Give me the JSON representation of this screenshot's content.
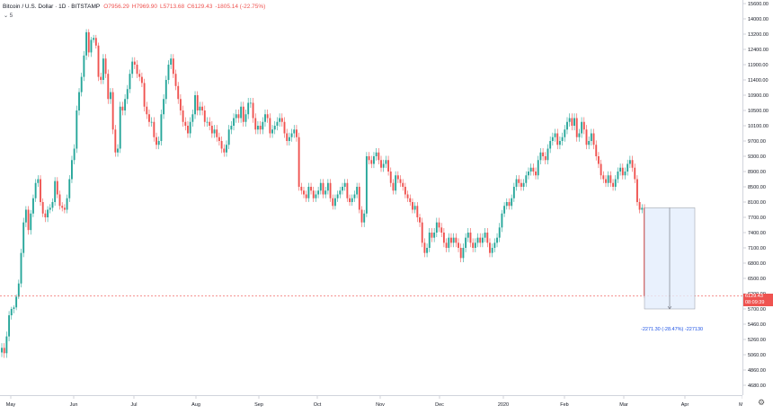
{
  "header": {
    "symbol": "Bitcoin / U.S. Dollar · 1D · BITSTAMP",
    "open": "O7956.29",
    "high": "H7969.90",
    "low": "L5713.68",
    "close": "C6129.43",
    "change": "-1805.14 (-22.75%)"
  },
  "collapse_label": "5",
  "last_price": {
    "value": "6129.43",
    "countdown": "08:09:39"
  },
  "measure": {
    "label": "-2271.30 (-28.47%) -227130"
  },
  "colors": {
    "up": "#26a69a",
    "down": "#ef5350",
    "measure": "#1e53e5",
    "measure_fill": "#e3edfc"
  },
  "chart_data": {
    "type": "candlestick",
    "y_ticks": [
      "15600.00",
      "14000.00",
      "13200.00",
      "12400.00",
      "11900.00",
      "11400.00",
      "10900.00",
      "10500.00",
      "10100.00",
      "9700.00",
      "9300.00",
      "8900.00",
      "8500.00",
      "8100.00",
      "7700.00",
      "7400.00",
      "7100.00",
      "6800.00",
      "6500.00",
      "6200.00",
      "5700.00",
      "5460.00",
      "5260.00",
      "5060.00",
      "4860.00",
      "4680.00"
    ],
    "x_ticks": [
      "May",
      "Jun",
      "Jul",
      "Aug",
      "Sep",
      "Oct",
      "Nov",
      "Dec",
      "2020",
      "Feb",
      "Mar",
      "Apr",
      "Ma"
    ],
    "ylim": [
      4500,
      15800
    ],
    "closes": [
      5150,
      5080,
      5300,
      5600,
      5700,
      5750,
      6100,
      6400,
      7000,
      7600,
      7900,
      7450,
      7800,
      8200,
      8600,
      8700,
      8100,
      7800,
      7700,
      7900,
      7950,
      8100,
      8650,
      8300,
      8000,
      7950,
      7900,
      8200,
      8700,
      9200,
      9500,
      10500,
      11000,
      11500,
      12200,
      13300,
      12300,
      12900,
      13000,
      12600,
      11500,
      11400,
      12100,
      11600,
      10800,
      11000,
      10000,
      9400,
      9500,
      10600,
      10500,
      10800,
      11100,
      11600,
      12000,
      11900,
      11600,
      11500,
      11300,
      10600,
      10400,
      10200,
      10200,
      9800,
      9600,
      9700,
      10400,
      10800,
      11400,
      11900,
      12100,
      11600,
      11200,
      10800,
      10500,
      10200,
      10100,
      9900,
      10200,
      10400,
      10900,
      10500,
      10600,
      10500,
      10200,
      10200,
      10100,
      9900,
      10000,
      9800,
      9700,
      9500,
      9400,
      9600,
      10000,
      10100,
      10300,
      10400,
      10300,
      10600,
      10200,
      10400,
      10700,
      10700,
      10300,
      10000,
      10100,
      10000,
      10200,
      10400,
      10300,
      9900,
      10000,
      10100,
      10200,
      10300,
      10200,
      9900,
      9700,
      9800,
      9900,
      10000,
      9800,
      8500,
      8400,
      8300,
      8200,
      8500,
      8400,
      8200,
      8300,
      8400,
      8600,
      8300,
      8400,
      8600,
      8200,
      8000,
      8200,
      8300,
      8400,
      8500,
      8600,
      8200,
      8100,
      8200,
      8300,
      8500,
      7900,
      7600,
      7800,
      9300,
      9200,
      9100,
      9300,
      9400,
      9200,
      9000,
      9100,
      9200,
      8900,
      8600,
      8400,
      8800,
      8700,
      8600,
      8500,
      8300,
      8200,
      8100,
      7900,
      8000,
      7700,
      7600,
      7200,
      7000,
      7100,
      7400,
      7300,
      7400,
      7600,
      7500,
      7400,
      7200,
      7100,
      7300,
      7200,
      7300,
      7200,
      7100,
      6900,
      7100,
      7300,
      7400,
      7200,
      7100,
      7200,
      7300,
      7200,
      7300,
      7400,
      7200,
      7000,
      7100,
      7200,
      7300,
      7500,
      7800,
      8000,
      8100,
      8000,
      8200,
      8500,
      8700,
      8600,
      8500,
      8600,
      8800,
      8900,
      9000,
      8900,
      8800,
      9200,
      9400,
      9300,
      9200,
      9500,
      9700,
      9800,
      9900,
      9600,
      9700,
      9800,
      10000,
      10200,
      10300,
      10100,
      10300,
      9800,
      9900,
      10200,
      10000,
      9600,
      9700,
      9900,
      9600,
      9300,
      9100,
      8800,
      8700,
      8600,
      8800,
      8600,
      8500,
      8700,
      8900,
      9000,
      8800,
      8900,
      9100,
      9200,
      9000,
      8700,
      8100,
      7900,
      7950,
      6129
    ],
    "measure": {
      "from": 7950,
      "to": 5700,
      "delta": -2271.3,
      "pct": -28.47
    }
  }
}
